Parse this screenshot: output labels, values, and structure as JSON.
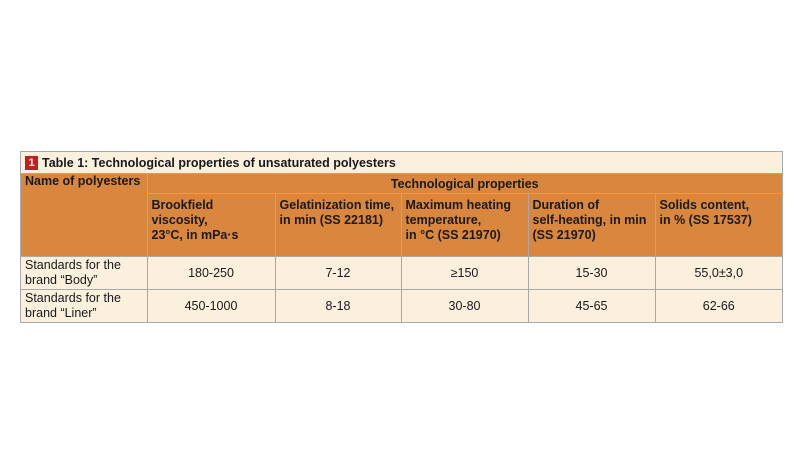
{
  "table": {
    "badge": "1",
    "caption": "Table 1: Technological properties of unsaturated polyesters",
    "row_header_label": "Name of polyesters",
    "group_header": "Technological properties",
    "columns": [
      [
        "Brookfield viscosity,",
        "23°C, in mPa·s"
      ],
      [
        "Gelatinization time,",
        "in min (SS 22181)"
      ],
      [
        "Maximum heating",
        "temperature,",
        "in °C (SS 21970)"
      ],
      [
        "Duration of",
        "self-heating, in min",
        "(SS 21970)"
      ],
      [
        "Solids content,",
        "in % (SS 17537)"
      ]
    ],
    "rows": [
      {
        "label": [
          "Standards for the",
          "brand “Body”"
        ],
        "values": [
          "180-250",
          "7-12",
          "≥150",
          "15-30",
          "55,0±3,0"
        ]
      },
      {
        "label": [
          "Standards for the",
          "brand “Liner”"
        ],
        "values": [
          "450-1000",
          "8-18",
          "30-80",
          "45-65",
          "62-66"
        ]
      }
    ]
  }
}
